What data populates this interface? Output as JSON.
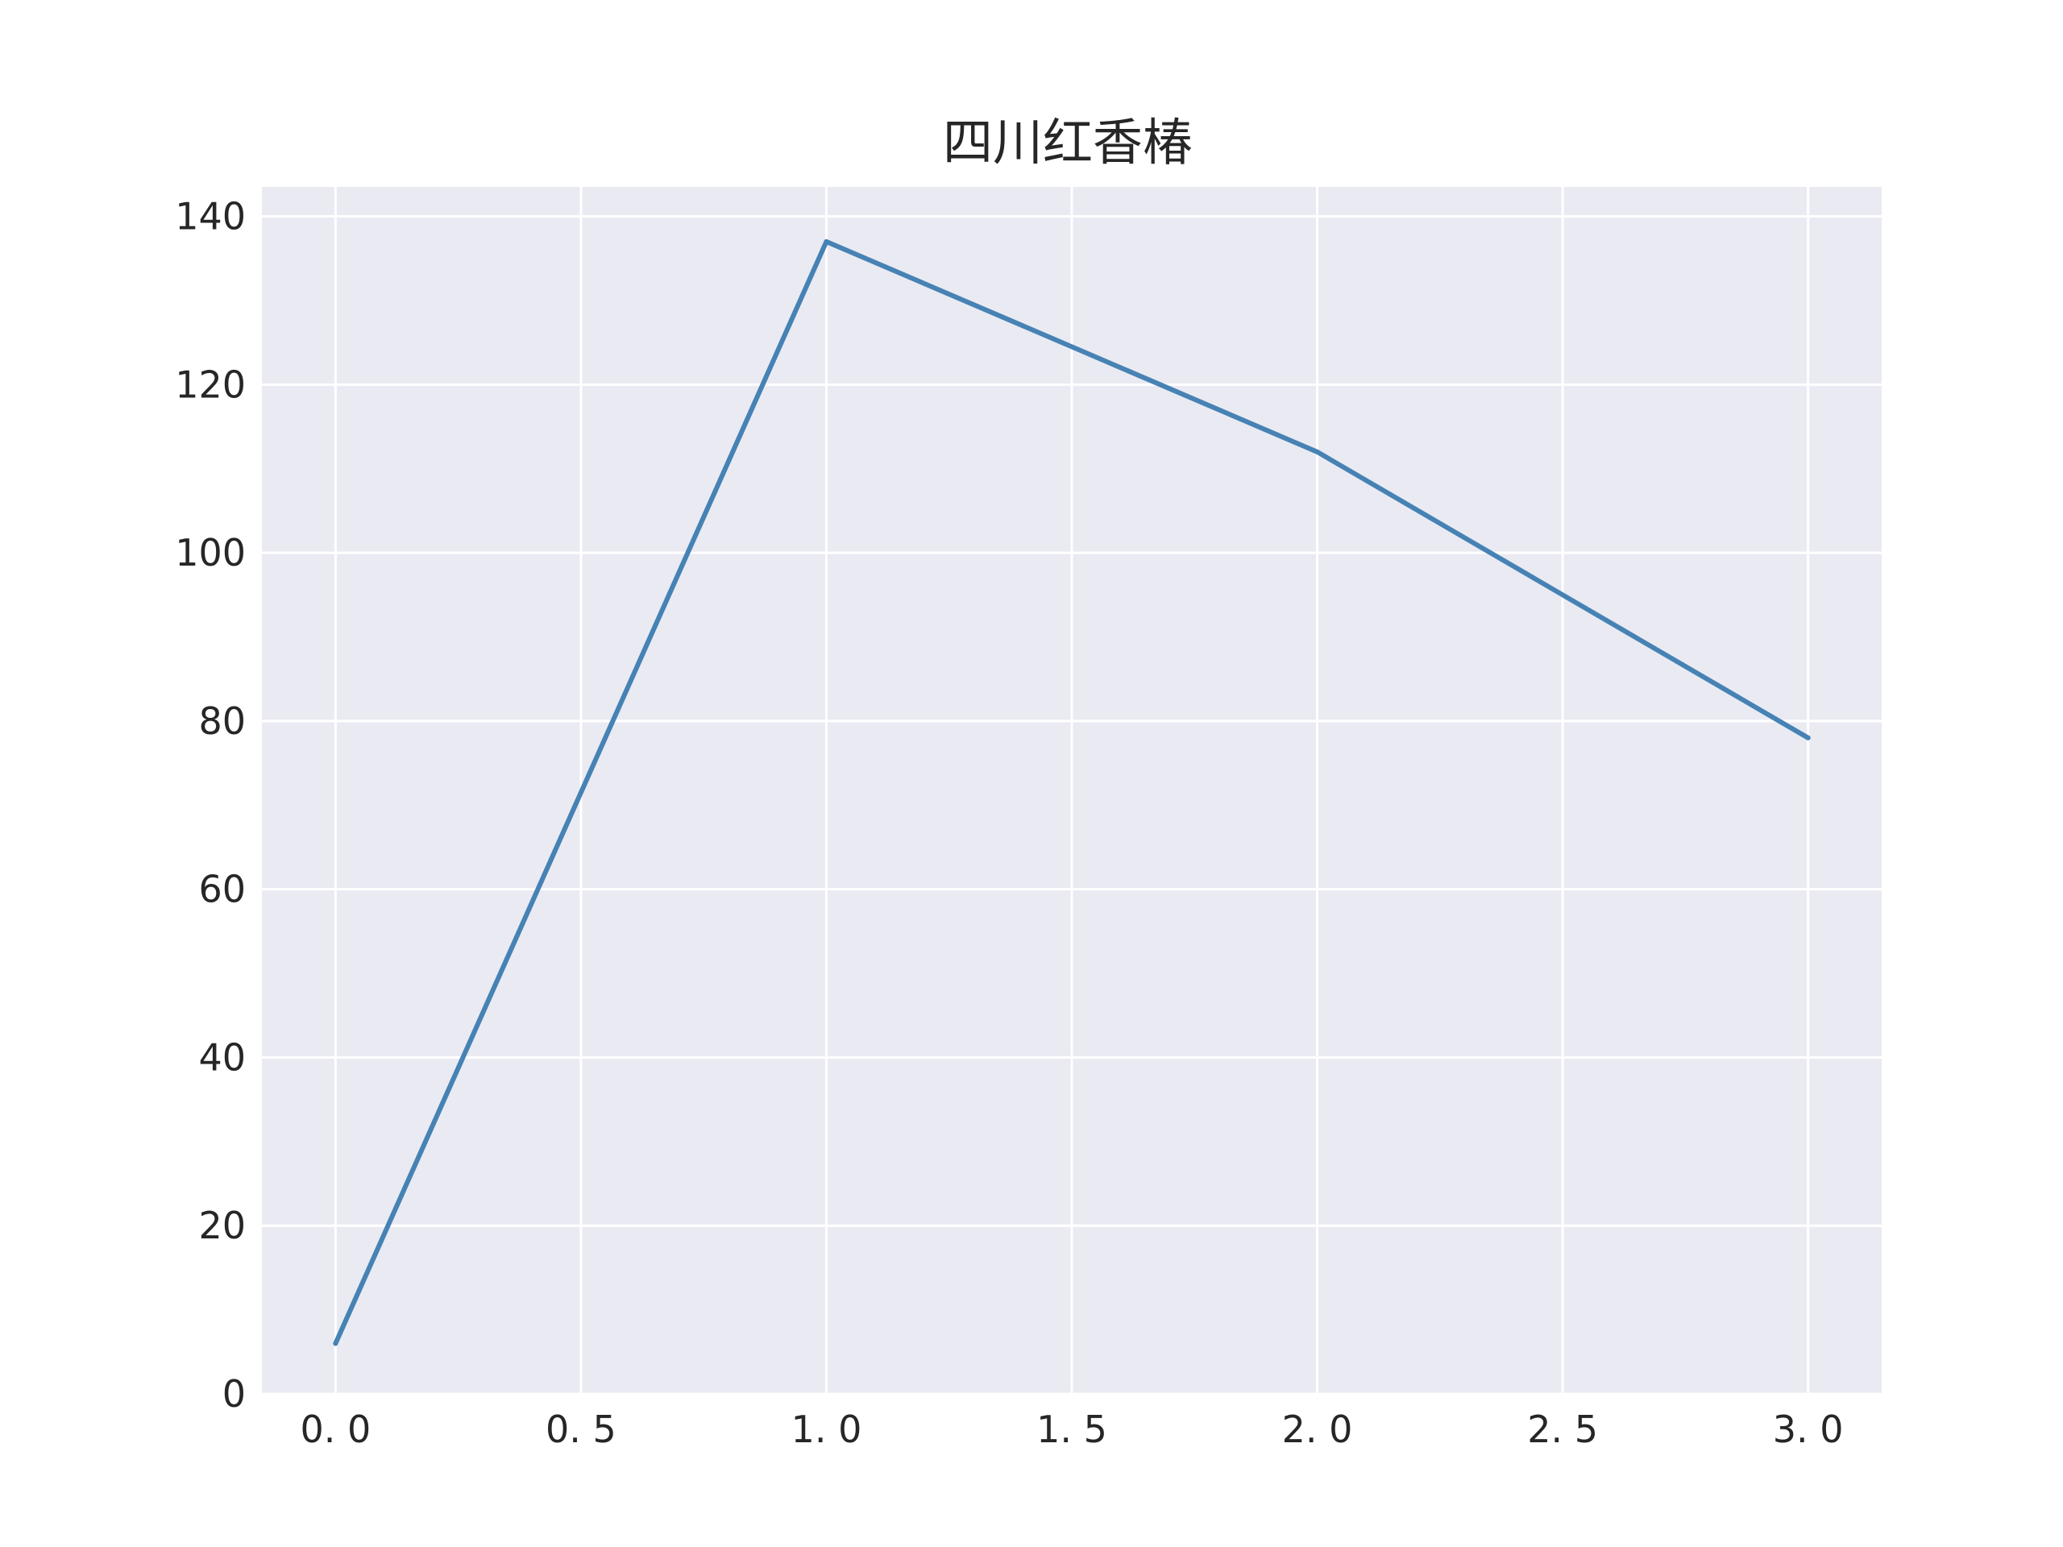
{
  "chart_data": {
    "type": "line",
    "title": "四川红香椿",
    "xlabel": "",
    "ylabel": "",
    "x": [
      0,
      1,
      2,
      3
    ],
    "series": [
      {
        "values": [
          6,
          137,
          112,
          78
        ]
      }
    ],
    "xlim": [
      -0.15,
      3.15
    ],
    "ylim": [
      0,
      143.5
    ],
    "x_ticks": [
      0.0,
      0.5,
      1.0,
      1.5,
      2.0,
      2.5,
      3.0
    ],
    "x_tick_labels": [
      "0. 0",
      "0. 5",
      "1. 0",
      "1. 5",
      "2. 0",
      "2. 5",
      "3. 0"
    ],
    "y_ticks": [
      0,
      20,
      40,
      60,
      80,
      100,
      120,
      140
    ],
    "y_tick_labels": [
      "0",
      "20",
      "40",
      "60",
      "80",
      "100",
      "120",
      "140"
    ],
    "grid": true,
    "legend": "none",
    "colors": {
      "line": "#4682b4",
      "plot_background": "#eaeaf2",
      "grid": "#ffffff",
      "text": "#262626",
      "figure_background": "#ffffff"
    }
  }
}
